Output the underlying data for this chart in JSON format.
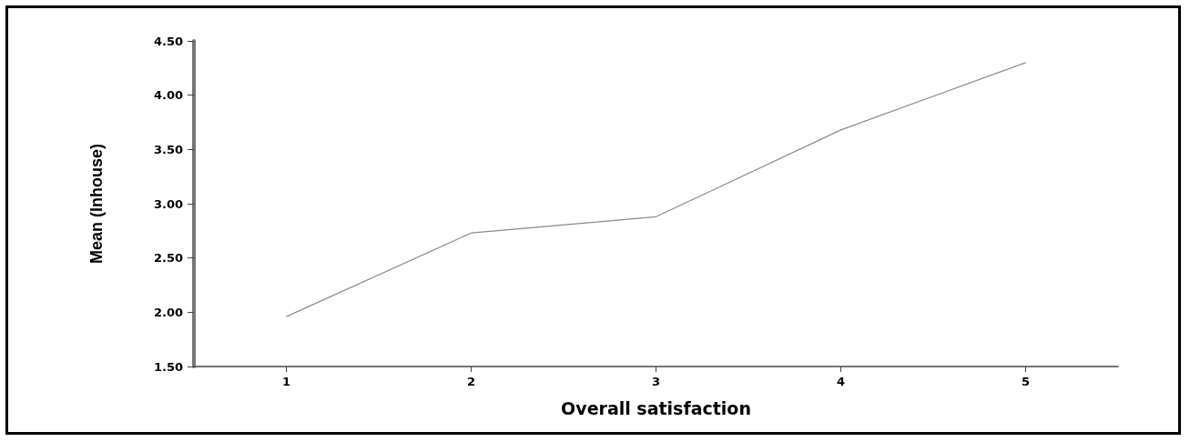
{
  "chart_data": {
    "type": "line",
    "xlabel": "Overall satisfaction",
    "ylabel": "Mean (Inhouse)",
    "x": [
      1,
      2,
      3,
      4,
      5
    ],
    "series": [
      {
        "color": "#8c8c8c",
        "values": [
          1.96,
          2.73,
          2.88,
          3.68,
          4.3
        ]
      }
    ],
    "xlim": [
      0.5,
      5.5
    ],
    "xticks": [
      1,
      2,
      3,
      4,
      5
    ],
    "ylim": [
      1.5,
      4.5
    ],
    "yticks": [
      {
        "value": 1.5,
        "label": "1.50"
      },
      {
        "value": 2,
        "label": "2.00"
      },
      {
        "value": 2.5,
        "label": "2.50"
      },
      {
        "value": 3,
        "label": "3.00"
      },
      {
        "value": 3.5,
        "label": "3.50"
      },
      {
        "value": 4,
        "label": "4.00"
      },
      {
        "value": 4.5,
        "label": "4.50"
      }
    ],
    "grid": false,
    "marker": "none",
    "line_style": "solid"
  }
}
